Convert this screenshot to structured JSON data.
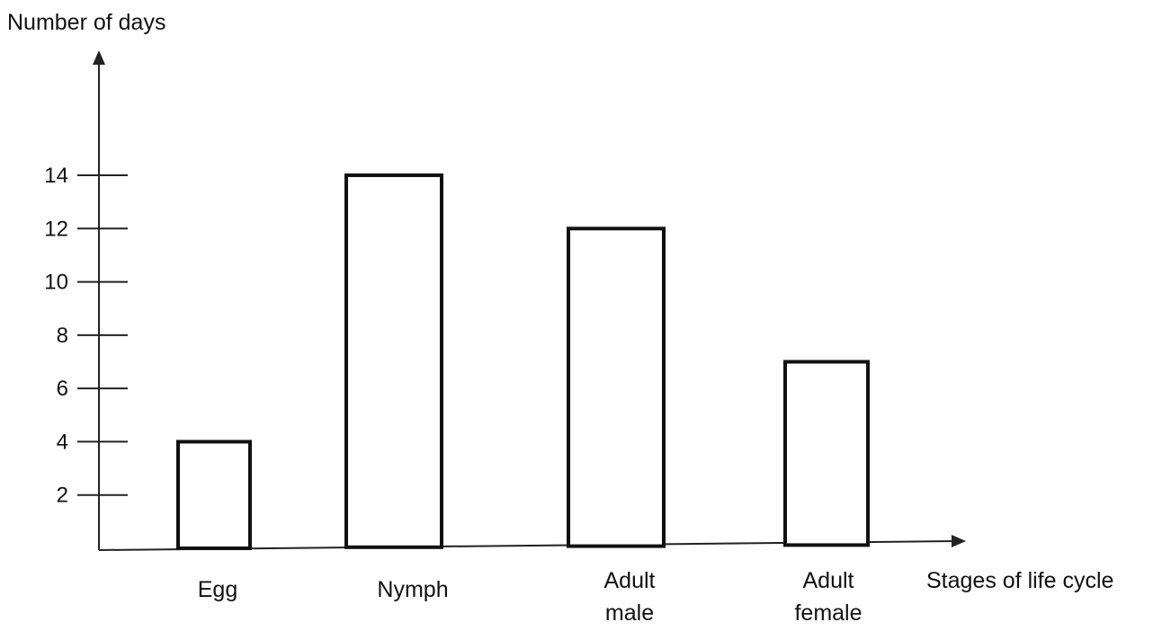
{
  "chart_data": {
    "type": "bar",
    "ylabel": "Number of days",
    "xlabel": "Stages of life cycle",
    "categories": [
      [
        "Egg"
      ],
      [
        "Nymph"
      ],
      [
        "Adult",
        "male"
      ],
      [
        "Adult",
        "female"
      ]
    ],
    "values": [
      4,
      14,
      12,
      7
    ],
    "yticks": [
      2,
      4,
      6,
      8,
      10,
      12,
      14
    ],
    "ylim": [
      0,
      14
    ],
    "grid": false,
    "legend": "none"
  }
}
